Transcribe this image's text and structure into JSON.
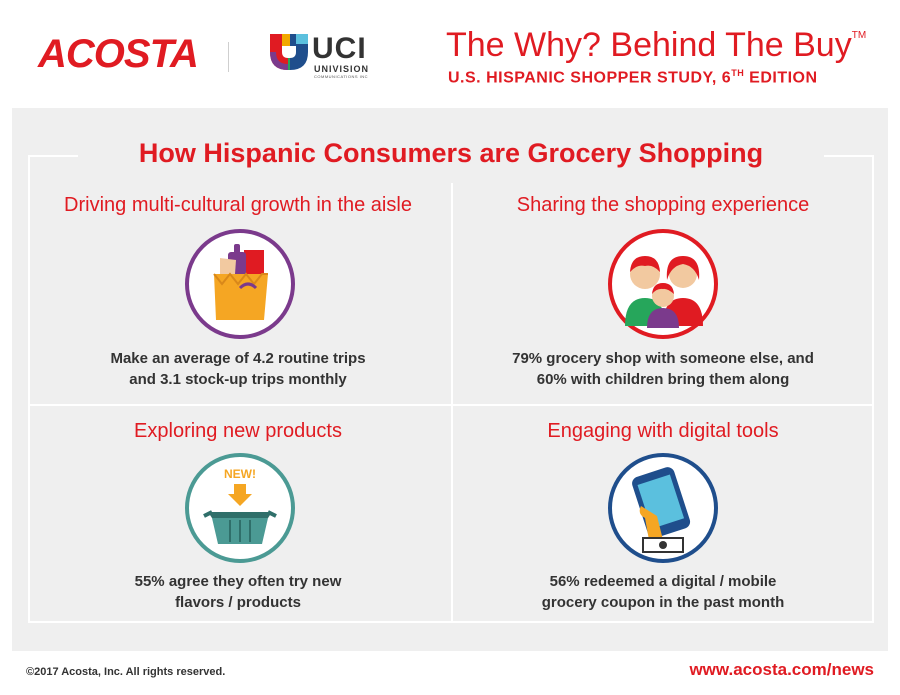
{
  "header": {
    "brand": "ACOSTA",
    "partner_name": "UCI",
    "partner_sub": "UNIVISION",
    "partner_sub2": "COMMUNICATIONS INC",
    "study_title": "The Why? Behind The Buy",
    "study_title_tm": "TM",
    "study_subtitle_pre": "U.S. HISPANIC SHOPPER STUDY, 6",
    "study_subtitle_sup": "TH",
    "study_subtitle_post": " EDITION"
  },
  "main": {
    "title": "How Hispanic Consumers are Grocery Shopping",
    "quadrants": [
      {
        "title": "Driving multi-cultural growth in the aisle",
        "text_line1": "Make an average of 4.2 routine trips",
        "text_line2": "and 3.1 stock-up trips monthly",
        "icon": "grocery-bag-icon",
        "ring_color": "#7b3a8c"
      },
      {
        "title": "Sharing the shopping experience",
        "text_line1": "79% grocery shop with someone else, and",
        "text_line2": "60% with children bring them along",
        "icon": "family-icon",
        "ring_color": "#e01b22"
      },
      {
        "title": "Exploring new products",
        "text_line1": "55% agree they often try new",
        "text_line2": "flavors / products",
        "icon": "new-basket-icon",
        "new_label": "NEW!",
        "ring_color": "#4b9a94"
      },
      {
        "title": "Engaging with digital tools",
        "text_line1": "56% redeemed a digital / mobile",
        "text_line2": "grocery coupon in the past month",
        "icon": "mobile-coupon-icon",
        "ring_color": "#1f4e8c"
      }
    ]
  },
  "footer": {
    "copyright": "©2017 Acosta, Inc. All rights reserved.",
    "url": "www.acosta.com/news"
  },
  "colors": {
    "brand_red": "#e01b22",
    "panel_bg": "#efefef",
    "text_dark": "#333333"
  }
}
